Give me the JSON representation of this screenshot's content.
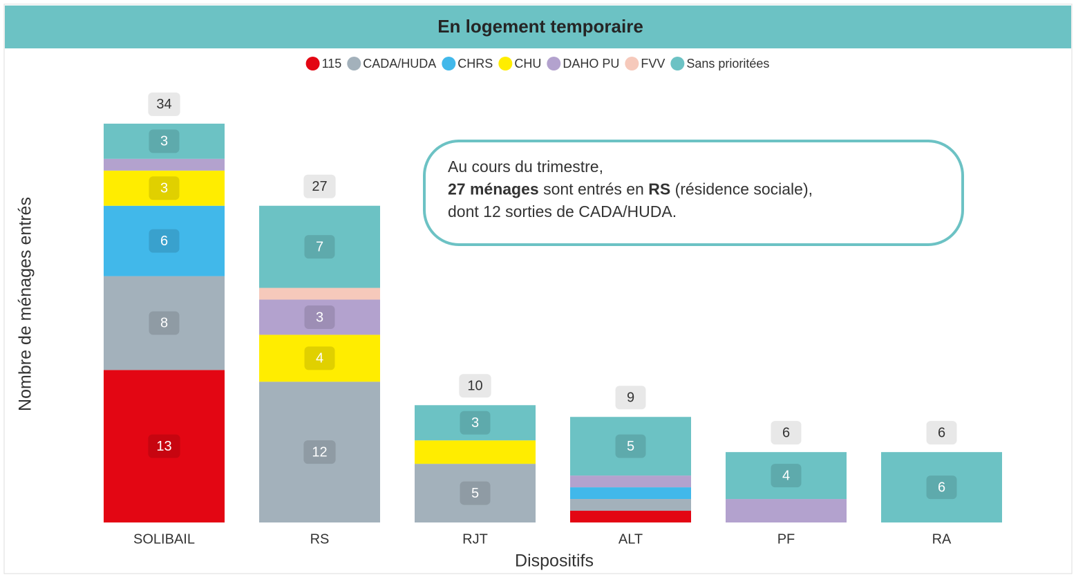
{
  "chart_data": {
    "type": "stacked_bar",
    "title": "En logement temporaire",
    "x_label": "Dispositifs",
    "y_label": "Nombre de ménages entrés",
    "categories": [
      "SOLIBAIL",
      "RS",
      "RJT",
      "ALT",
      "PF",
      "RA"
    ],
    "series": [
      {
        "name": "115",
        "color": "#e30613",
        "values": [
          13,
          null,
          null,
          1,
          null,
          null
        ]
      },
      {
        "name": "CADA/HUDA",
        "color": "#a3b1bb",
        "values": [
          8,
          12,
          5,
          1,
          null,
          null
        ]
      },
      {
        "name": "CHRS",
        "color": "#41b8ea",
        "values": [
          6,
          null,
          null,
          1,
          null,
          null
        ]
      },
      {
        "name": "CHU",
        "color": "#ffed00",
        "values": [
          3,
          4,
          2,
          null,
          null,
          null
        ]
      },
      {
        "name": "DAHO PU",
        "color": "#b3a2ce",
        "values": [
          1,
          3,
          null,
          1,
          2,
          null
        ]
      },
      {
        "name": "FVV",
        "color": "#f6c9bb",
        "values": [
          null,
          1,
          null,
          null,
          null,
          null
        ]
      },
      {
        "name": "Sans prioritées",
        "color": "#6cc2c4",
        "values": [
          3,
          7,
          3,
          5,
          4,
          6
        ]
      }
    ],
    "totals": [
      34,
      27,
      10,
      9,
      6,
      6
    ],
    "ylim": [
      0,
      37
    ],
    "legend": "top",
    "annotation": [
      [
        {
          "text": "Au cours du trimestre,",
          "bold": false
        }
      ],
      [
        {
          "text": "27 ménages",
          "bold": true
        },
        {
          "text": " sont entrés en ",
          "bold": false
        },
        {
          "text": "RS",
          "bold": true
        },
        {
          "text": " (résidence sociale),",
          "bold": false
        }
      ],
      [
        {
          "text": "dont 12 sorties de CADA/HUDA.",
          "bold": false
        }
      ]
    ]
  }
}
